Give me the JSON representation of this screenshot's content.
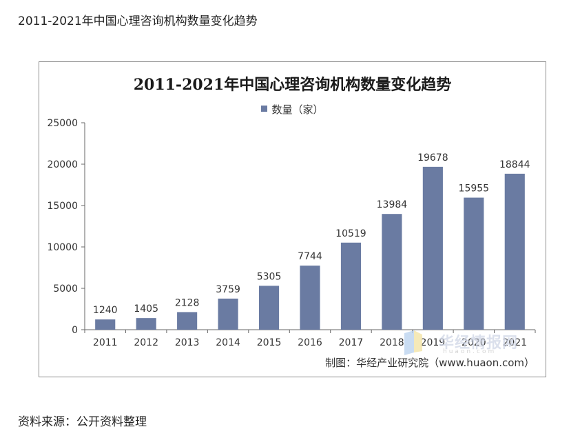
{
  "page": {
    "heading": "2011-2021年中国心理咨询机构数量变化趋势",
    "source": "资料来源：公开资料整理"
  },
  "chart": {
    "credit": "制图：华经产业研究院（www.huaon.com）",
    "watermark_text": "华经情报网",
    "watermark_sub": "huaon.com"
  },
  "colors": {
    "bar": "#6a7ba2",
    "axis": "#666666",
    "text": "#333333"
  },
  "chart_data": {
    "type": "bar",
    "title": "2011-2021年中国心理咨询机构数量变化趋势",
    "xlabel": "",
    "ylabel": "",
    "categories": [
      "2011",
      "2012",
      "2013",
      "2014",
      "2015",
      "2016",
      "2017",
      "2018",
      "2019",
      "2020",
      "2021"
    ],
    "series": [
      {
        "name": "数量（家）",
        "values": [
          1240,
          1405,
          2128,
          3759,
          5305,
          7744,
          10519,
          13984,
          19678,
          15955,
          18844
        ]
      }
    ],
    "ylim": [
      0,
      25000
    ],
    "yticks": [
      0,
      5000,
      10000,
      15000,
      20000,
      25000
    ],
    "grid": false,
    "legend": "top-center",
    "data_labels": true
  }
}
